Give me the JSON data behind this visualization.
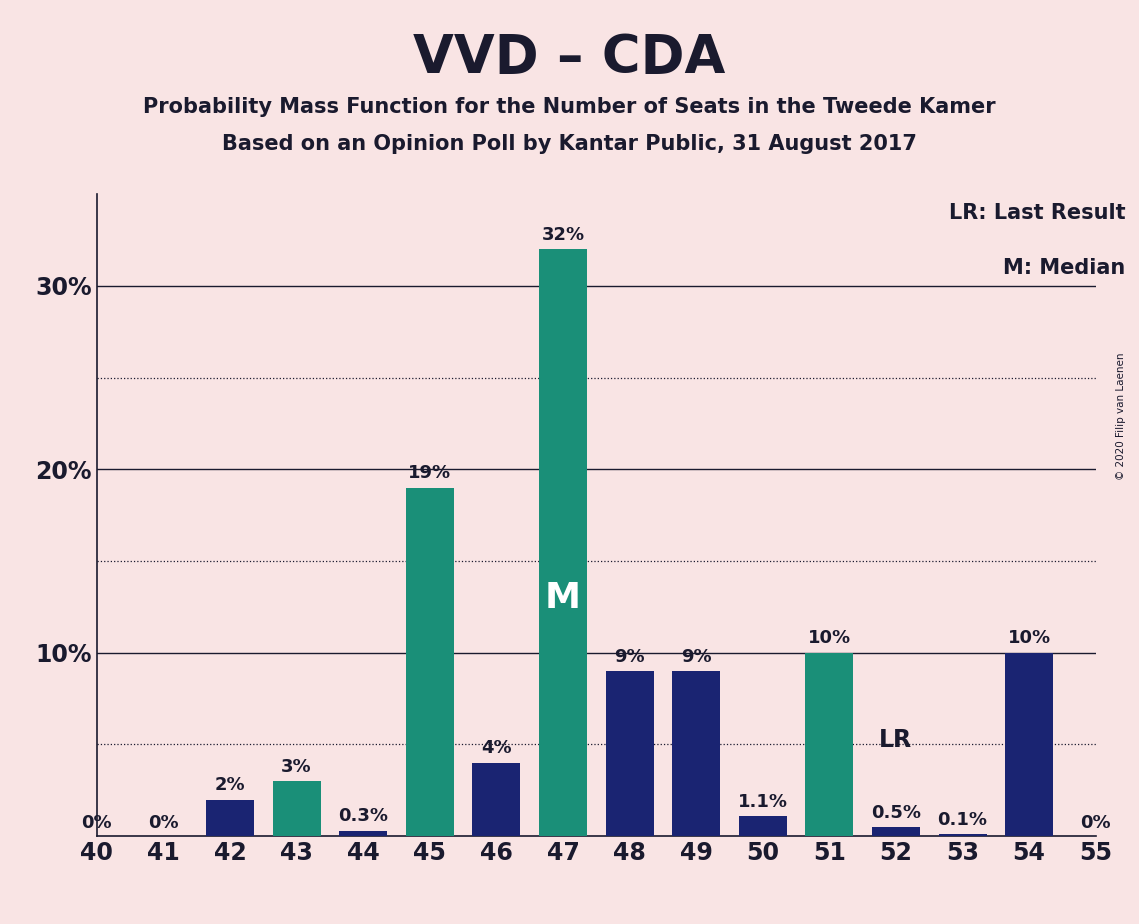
{
  "title": "VVD – CDA",
  "subtitle1": "Probability Mass Function for the Number of Seats in the Tweede Kamer",
  "subtitle2": "Based on an Opinion Poll by Kantar Public, 31 August 2017",
  "copyright": "© 2020 Filip van Laenen",
  "categories": [
    40,
    41,
    42,
    43,
    44,
    45,
    46,
    47,
    48,
    49,
    50,
    51,
    52,
    53,
    54,
    55
  ],
  "navy_values": [
    0.0,
    0.0,
    2.0,
    0.0,
    0.3,
    0.0,
    4.0,
    0.0,
    9.0,
    9.0,
    1.1,
    0.0,
    0.5,
    0.1,
    10.0,
    0.0
  ],
  "teal_values": [
    0.0,
    0.0,
    0.0,
    3.0,
    0.0,
    19.0,
    0.0,
    32.0,
    0.0,
    0.0,
    0.0,
    10.0,
    0.0,
    0.0,
    0.0,
    0.0
  ],
  "navy_color": "#1a2472",
  "teal_color": "#1a8f78",
  "background_color": "#f9e4e4",
  "ylim": [
    0,
    35
  ],
  "yticks": [
    0,
    5,
    10,
    15,
    20,
    25,
    30,
    35
  ],
  "ytick_labels": [
    "",
    "",
    "10%",
    "",
    "20%",
    "",
    "30%",
    ""
  ],
  "solid_gridlines": [
    10,
    20,
    30
  ],
  "dotted_gridlines": [
    5,
    15,
    25
  ],
  "median_seat": 47,
  "lr_seat": 52,
  "legend_text1": "LR: Last Result",
  "legend_text2": "M: Median",
  "single_bar_width": 0.72,
  "pair_bar_width": 0.36,
  "label_fontsize": 13,
  "tick_fontsize": 17,
  "legend_fontsize": 15,
  "title_fontsize": 38,
  "subtitle_fontsize": 15,
  "text_color": "#1a1a2e"
}
